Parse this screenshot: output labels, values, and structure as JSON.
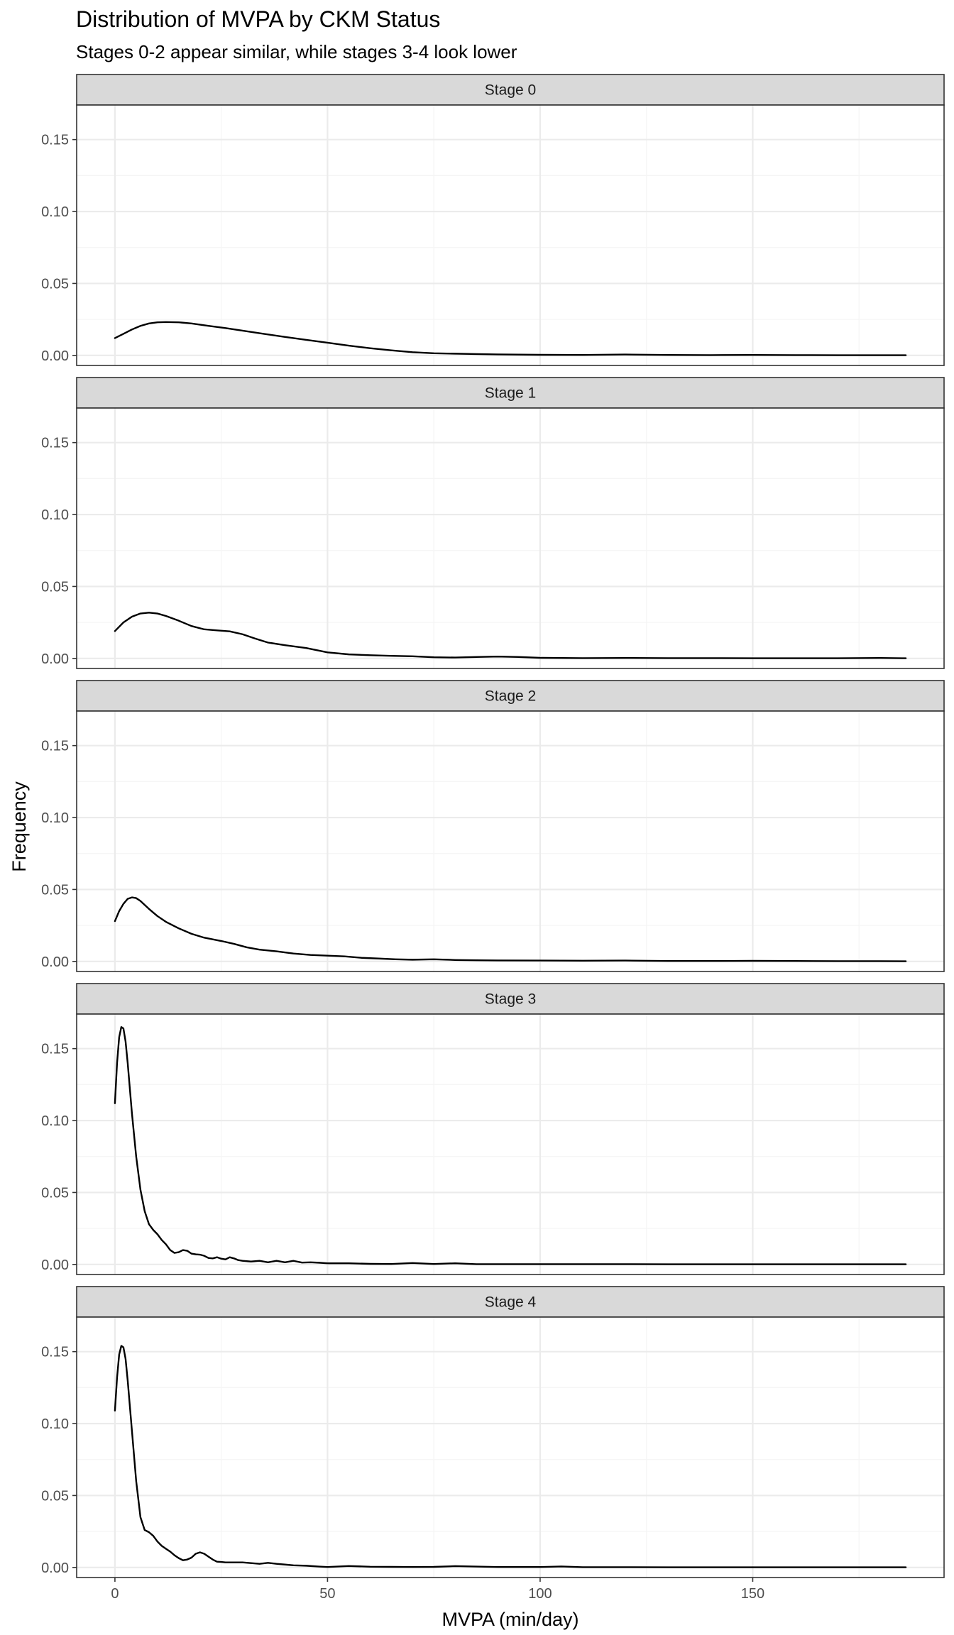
{
  "chart_data": {
    "type": "line",
    "title": "Distribution of MVPA by CKM Status",
    "subtitle": "Stages 0-2 appear similar, while stages 3-4 look lower",
    "xlabel": "MVPA (min/day)",
    "ylabel": "Frequency",
    "xlim": [
      -9,
      195
    ],
    "ylim": [
      -0.007,
      0.174
    ],
    "x_ticks": [
      0,
      50,
      100,
      150
    ],
    "x_tick_labels": [
      "0",
      "50",
      "100",
      "150"
    ],
    "y_ticks": [
      0,
      0.05,
      0.1,
      0.15
    ],
    "y_tick_labels": [
      "0.00",
      "0.05",
      "0.10",
      "0.15"
    ],
    "grid": true,
    "facet_layout": "vertical",
    "panels": [
      {
        "label": "Stage 0",
        "x": [
          0,
          2,
          4,
          6,
          8,
          10,
          12,
          15,
          18,
          22,
          26,
          30,
          35,
          40,
          45,
          50,
          55,
          60,
          65,
          70,
          75,
          80,
          85,
          90,
          100,
          110,
          120,
          130,
          140,
          150,
          160,
          170,
          180,
          186
        ],
        "y": [
          0.012,
          0.015,
          0.018,
          0.0205,
          0.0222,
          0.023,
          0.0232,
          0.023,
          0.0222,
          0.0205,
          0.019,
          0.0172,
          0.015,
          0.0128,
          0.0108,
          0.0088,
          0.0068,
          0.005,
          0.0035,
          0.0022,
          0.0015,
          0.0012,
          0.0009,
          0.0007,
          0.0004,
          0.0003,
          0.0006,
          0.0003,
          0.0002,
          0.0003,
          0.0002,
          0.0001,
          0.0001,
          0.0001
        ]
      },
      {
        "label": "Stage 1",
        "x": [
          0,
          2,
          4,
          6,
          8,
          10,
          12,
          15,
          18,
          21,
          24,
          27,
          30,
          33,
          36,
          40,
          45,
          50,
          55,
          60,
          65,
          70,
          75,
          80,
          85,
          90,
          95,
          100,
          110,
          120,
          130,
          140,
          150,
          160,
          170,
          180,
          186
        ],
        "y": [
          0.019,
          0.025,
          0.029,
          0.0312,
          0.0318,
          0.0312,
          0.0295,
          0.0262,
          0.0225,
          0.0202,
          0.0195,
          0.0188,
          0.0168,
          0.0138,
          0.011,
          0.0092,
          0.0072,
          0.0042,
          0.0028,
          0.0022,
          0.0018,
          0.0015,
          0.0008,
          0.0006,
          0.001,
          0.0013,
          0.001,
          0.0004,
          0.0002,
          0.0003,
          0.0002,
          0.0002,
          0.0001,
          0.0001,
          0.0001,
          0.0003,
          0.0001
        ]
      },
      {
        "label": "Stage 2",
        "x": [
          0,
          1,
          2,
          3,
          4,
          5,
          6,
          8,
          10,
          12,
          15,
          18,
          21,
          25,
          28,
          31,
          34,
          38,
          42,
          46,
          50,
          54,
          58,
          62,
          66,
          70,
          75,
          80,
          85,
          90,
          100,
          110,
          120,
          130,
          140,
          150,
          160,
          170,
          180,
          186
        ],
        "y": [
          0.028,
          0.035,
          0.04,
          0.0435,
          0.0445,
          0.044,
          0.042,
          0.0365,
          0.0315,
          0.0275,
          0.023,
          0.0192,
          0.0165,
          0.0142,
          0.0122,
          0.0098,
          0.0082,
          0.007,
          0.0055,
          0.0045,
          0.004,
          0.0035,
          0.0025,
          0.002,
          0.0015,
          0.0012,
          0.0015,
          0.001,
          0.0008,
          0.0007,
          0.0006,
          0.0005,
          0.0006,
          0.0003,
          0.0003,
          0.0004,
          0.0003,
          0.0002,
          0.0002,
          0.0001
        ]
      },
      {
        "label": "Stage 3",
        "x": [
          0,
          0.5,
          1,
          1.5,
          2,
          2.5,
          3,
          4,
          5,
          6,
          7,
          8,
          9,
          10,
          11,
          12,
          13,
          14,
          15,
          16,
          17,
          18,
          19,
          20,
          21,
          22,
          23,
          24,
          25,
          26,
          27,
          28,
          29,
          30,
          32,
          34,
          36,
          38,
          40,
          42,
          44,
          46,
          48,
          50,
          55,
          60,
          65,
          70,
          75,
          80,
          85,
          90,
          100,
          110,
          120,
          130,
          140,
          150,
          160,
          170,
          180,
          186
        ],
        "y": [
          0.112,
          0.14,
          0.158,
          0.165,
          0.164,
          0.155,
          0.14,
          0.105,
          0.075,
          0.052,
          0.037,
          0.028,
          0.024,
          0.021,
          0.017,
          0.014,
          0.01,
          0.008,
          0.0085,
          0.01,
          0.0095,
          0.0075,
          0.007,
          0.0068,
          0.006,
          0.0045,
          0.0042,
          0.005,
          0.004,
          0.0035,
          0.005,
          0.0042,
          0.003,
          0.0025,
          0.002,
          0.0025,
          0.0015,
          0.0025,
          0.0015,
          0.0025,
          0.0013,
          0.0015,
          0.0012,
          0.0008,
          0.0008,
          0.0004,
          0.0003,
          0.001,
          0.0003,
          0.0008,
          0.0002,
          0.0002,
          0.0002,
          0.0002,
          0.0002,
          0.0001,
          0.0001,
          0.0001,
          0.0001,
          0.0001,
          0.0001,
          0.0001
        ]
      },
      {
        "label": "Stage 4",
        "x": [
          0,
          0.5,
          1,
          1.5,
          2,
          2.5,
          3,
          4,
          5,
          6,
          7,
          8,
          9,
          10,
          11,
          12,
          13,
          14,
          15,
          16,
          17,
          18,
          19,
          20,
          21,
          22,
          23,
          24,
          25,
          26,
          28,
          30,
          32,
          34,
          36,
          38,
          40,
          42,
          45,
          48,
          50,
          55,
          60,
          65,
          70,
          75,
          80,
          85,
          90,
          100,
          105,
          110,
          120,
          130,
          140,
          150,
          160,
          170,
          180,
          186
        ],
        "y": [
          0.109,
          0.132,
          0.148,
          0.154,
          0.153,
          0.145,
          0.13,
          0.095,
          0.06,
          0.035,
          0.026,
          0.0245,
          0.022,
          0.018,
          0.015,
          0.013,
          0.011,
          0.0085,
          0.0065,
          0.005,
          0.0055,
          0.0068,
          0.0095,
          0.0105,
          0.0095,
          0.0075,
          0.0055,
          0.004,
          0.0038,
          0.0035,
          0.0035,
          0.0035,
          0.003,
          0.0025,
          0.0032,
          0.0025,
          0.002,
          0.0015,
          0.0012,
          0.0006,
          0.0003,
          0.001,
          0.0005,
          0.0004,
          0.0003,
          0.0004,
          0.0009,
          0.0006,
          0.0003,
          0.0003,
          0.0007,
          0.0002,
          0.0002,
          0.0001,
          0.0001,
          0.0001,
          0.0001,
          0.0001,
          0.0001,
          0.0001
        ]
      }
    ],
    "colors": {
      "line": "#000000",
      "strip_fill": "#d9d9d9",
      "panel_border": "#333333",
      "grid_major": "#ebebeb",
      "grid_minor": "#f5f5f5",
      "tick_text": "#4d4d4d"
    }
  }
}
